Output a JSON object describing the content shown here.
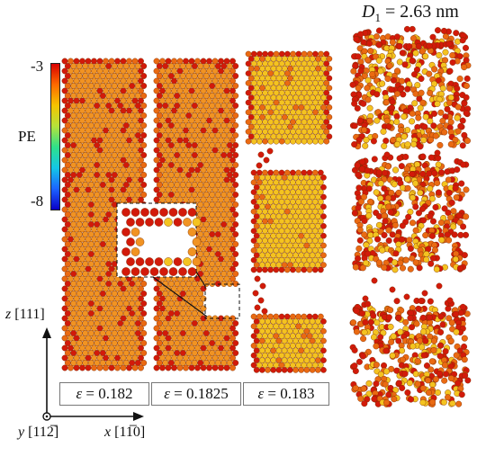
{
  "title": {
    "symbol": "D",
    "subscript": "1",
    "rest": " = 2.63 nm"
  },
  "colorbar": {
    "label": "PE",
    "max": "-3",
    "min": "-8",
    "colors": [
      "#d90000",
      "#ff6a00",
      "#f5c400",
      "#b6e23b",
      "#2fe08a",
      "#14c8e6",
      "#1c64ff",
      "#0a00c8"
    ]
  },
  "panels": [
    {
      "strain_symbol": "ε",
      "strain_text": " = 0.182"
    },
    {
      "strain_symbol": "ε",
      "strain_text": " = 0.1825"
    },
    {
      "strain_symbol": "ε",
      "strain_text": " = 0.183"
    }
  ],
  "axes": {
    "z": {
      "letter": "z",
      "index": "[111]"
    },
    "y": {
      "letter": "y",
      "index": "[112̅]"
    },
    "x": {
      "letter": "x",
      "index": "[11̅0]"
    }
  },
  "atom_colors": {
    "edge": "#d21a0a",
    "mid": "#ea6a12",
    "bulk": "#f4c320",
    "orange": "#f19322"
  }
}
